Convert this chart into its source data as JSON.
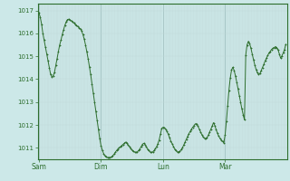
{
  "background_color": "#cce8e8",
  "plot_bg_color": "#cce8e8",
  "line_color": "#2d6e2d",
  "marker_color": "#2d6e2d",
  "grid_color_minor": "#c0d8d8",
  "grid_color_major": "#a0c0c0",
  "axis_color": "#2d6e2d",
  "tick_color": "#2d6e2d",
  "label_color": "#2d6e2d",
  "ylim": [
    1010.5,
    1017.3
  ],
  "yticks": [
    1011,
    1012,
    1013,
    1014,
    1015,
    1016,
    1017
  ],
  "xtick_labels": [
    "Sam",
    "Dim",
    "Lun",
    "Mar"
  ],
  "xtick_positions": [
    0,
    48,
    96,
    144
  ],
  "pressure_data": [
    1016.9,
    1016.7,
    1016.4,
    1016.0,
    1015.7,
    1015.4,
    1015.1,
    1014.8,
    1014.5,
    1014.2,
    1014.1,
    1014.15,
    1014.3,
    1014.6,
    1014.9,
    1015.2,
    1015.5,
    1015.7,
    1015.95,
    1016.15,
    1016.35,
    1016.5,
    1016.6,
    1016.62,
    1016.58,
    1016.55,
    1016.5,
    1016.45,
    1016.4,
    1016.35,
    1016.3,
    1016.25,
    1016.2,
    1016.1,
    1015.95,
    1015.75,
    1015.5,
    1015.2,
    1014.9,
    1014.55,
    1014.2,
    1013.8,
    1013.4,
    1013.0,
    1012.6,
    1012.2,
    1011.8,
    1011.4,
    1011.1,
    1010.9,
    1010.75,
    1010.65,
    1010.6,
    1010.58,
    1010.57,
    1010.58,
    1010.6,
    1010.65,
    1010.72,
    1010.8,
    1010.88,
    1010.95,
    1011.0,
    1011.05,
    1011.1,
    1011.15,
    1011.2,
    1011.25,
    1011.2,
    1011.12,
    1011.05,
    1010.98,
    1010.9,
    1010.85,
    1010.82,
    1010.8,
    1010.82,
    1010.88,
    1010.95,
    1011.05,
    1011.15,
    1011.2,
    1011.15,
    1011.05,
    1010.95,
    1010.88,
    1010.82,
    1010.8,
    1010.82,
    1010.88,
    1010.96,
    1011.05,
    1011.18,
    1011.35,
    1011.6,
    1011.85,
    1011.9,
    1011.88,
    1011.82,
    1011.72,
    1011.6,
    1011.45,
    1011.3,
    1011.18,
    1011.05,
    1010.95,
    1010.88,
    1010.82,
    1010.82,
    1010.85,
    1010.92,
    1011.0,
    1011.12,
    1011.25,
    1011.38,
    1011.5,
    1011.62,
    1011.72,
    1011.82,
    1011.9,
    1011.98,
    1012.05,
    1012.05,
    1011.95,
    1011.82,
    1011.7,
    1011.58,
    1011.48,
    1011.42,
    1011.4,
    1011.45,
    1011.55,
    1011.68,
    1011.82,
    1011.95,
    1012.1,
    1011.98,
    1011.82,
    1011.65,
    1011.52,
    1011.42,
    1011.35,
    1011.28,
    1011.22,
    1011.55,
    1012.15,
    1012.85,
    1013.52,
    1014.05,
    1014.4,
    1014.52,
    1014.38,
    1014.15,
    1013.88,
    1013.58,
    1013.28,
    1012.98,
    1012.7,
    1012.45,
    1012.22,
    1015.05,
    1015.5,
    1015.65,
    1015.55,
    1015.35,
    1015.1,
    1014.85,
    1014.62,
    1014.42,
    1014.28,
    1014.2,
    1014.25,
    1014.38,
    1014.5,
    1014.65,
    1014.8,
    1014.92,
    1015.05,
    1015.15,
    1015.22,
    1015.3,
    1015.35,
    1015.38,
    1015.42,
    1015.38,
    1015.28,
    1015.1,
    1014.92,
    1015.02,
    1015.15,
    1015.3,
    1015.52
  ]
}
